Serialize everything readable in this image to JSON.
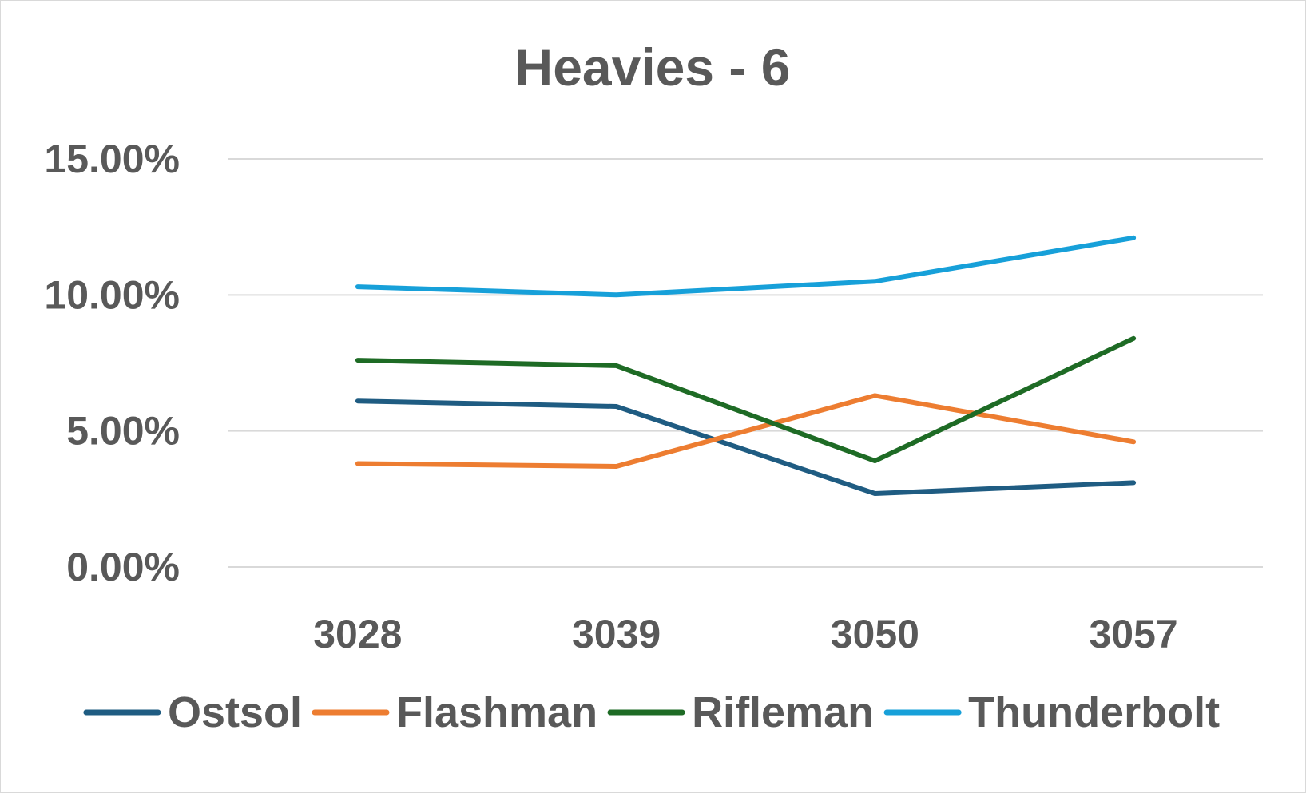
{
  "chart_data": {
    "type": "line",
    "title": "Heavies - 6",
    "xlabel": "",
    "ylabel": "",
    "categories": [
      "3028",
      "3039",
      "3050",
      "3057"
    ],
    "ylim": [
      0,
      0.15
    ],
    "y_ticks": [
      0,
      0.05,
      0.1,
      0.15
    ],
    "y_tick_labels": [
      "0.00%",
      "5.00%",
      "10.00%",
      "15.00%"
    ],
    "grid": true,
    "legend_position": "bottom",
    "series": [
      {
        "name": "Ostsol",
        "color": "#1f5c82",
        "values": [
          0.061,
          0.059,
          0.027,
          0.031
        ]
      },
      {
        "name": "Flashman",
        "color": "#ed7d31",
        "values": [
          0.038,
          0.037,
          0.063,
          0.046
        ]
      },
      {
        "name": "Rifleman",
        "color": "#1e6b25",
        "values": [
          0.076,
          0.074,
          0.039,
          0.084
        ]
      },
      {
        "name": "Thunderbolt",
        "color": "#17a0d9",
        "values": [
          0.103,
          0.1,
          0.105,
          0.121
        ]
      }
    ]
  }
}
